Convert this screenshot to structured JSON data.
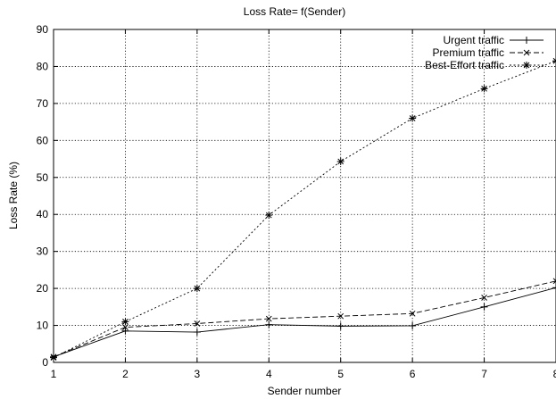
{
  "chart_data": {
    "type": "line",
    "title": "Loss Rate= f(Sender)",
    "xlabel": "Sender number",
    "ylabel": "Loss Rate (%)",
    "xlim": [
      1,
      8
    ],
    "ylim": [
      0,
      90
    ],
    "x_ticks": [
      "1",
      "2",
      "3",
      "4",
      "5",
      "6",
      "7",
      "8"
    ],
    "y_ticks": [
      "0",
      "10",
      "20",
      "30",
      "40",
      "50",
      "60",
      "70",
      "80",
      "90"
    ],
    "grid": true,
    "legend_position": "top-right",
    "x": [
      1,
      2,
      3,
      4,
      5,
      6,
      7,
      8
    ],
    "series": [
      {
        "name": "Urgent traffic",
        "marker": "+",
        "line": "solid",
        "values": [
          1.5,
          8.5,
          8.2,
          10.2,
          9.8,
          9.9,
          15.0,
          20.2
        ]
      },
      {
        "name": "Premium traffic",
        "marker": "x",
        "line": "dashed",
        "values": [
          1.5,
          9.5,
          10.5,
          11.8,
          12.5,
          13.2,
          17.5,
          22.0
        ]
      },
      {
        "name": "Best-Effort traffic",
        "marker": "*",
        "line": "dotted",
        "values": [
          1.3,
          11.0,
          20.0,
          39.8,
          54.3,
          66.0,
          74.0,
          81.5
        ]
      }
    ]
  }
}
